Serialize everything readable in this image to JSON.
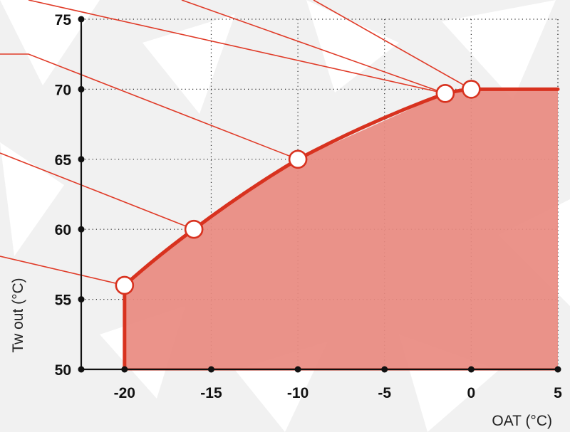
{
  "chart_data": {
    "type": "area",
    "title": "",
    "xlabel": "OAT (°C)",
    "ylabel": "Tw out  (°C)",
    "xlim": [
      -22.5,
      5
    ],
    "ylim": [
      50,
      75
    ],
    "x_ticks": [
      -20,
      -15,
      -10,
      -5,
      0,
      5
    ],
    "y_ticks": [
      50,
      55,
      60,
      65,
      70,
      75
    ],
    "x_tick_labels": [
      "-20",
      "-15",
      "-10",
      "-5",
      "0",
      "5"
    ],
    "y_tick_labels": [
      "50",
      "55",
      "60",
      "65",
      "70",
      "75"
    ],
    "grid": true,
    "series": [
      {
        "name": "",
        "envelope": [
          [
            -20,
            50
          ],
          [
            -20,
            56
          ],
          [
            -16,
            60
          ],
          [
            -10,
            65
          ],
          [
            -1.5,
            69.7
          ],
          [
            0,
            70
          ],
          [
            5,
            70
          ],
          [
            5,
            50
          ]
        ],
        "markers": [
          [
            -20,
            56
          ],
          [
            -16,
            60
          ],
          [
            -10,
            65
          ],
          [
            -1.5,
            69.7
          ],
          [
            0,
            70
          ]
        ]
      }
    ],
    "colors": {
      "fill": "#e98a80",
      "line": "#d8321f",
      "leader": "#e03b28"
    }
  }
}
